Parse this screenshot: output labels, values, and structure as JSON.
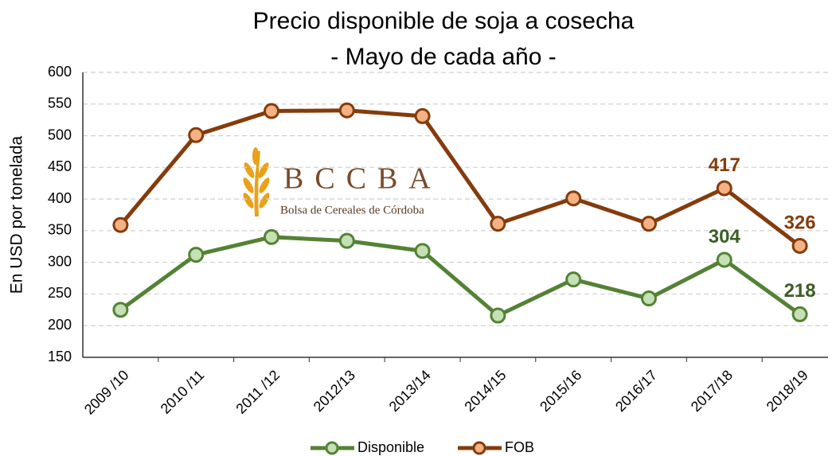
{
  "chart_data": {
    "type": "line",
    "title": "Precio disponible de soja a cosecha",
    "subtitle": "- Mayo de cada año -",
    "y_label": "En USD por tonelada",
    "categories": [
      "2009 /10",
      "2010 /11",
      "2011 /12",
      "2012/13",
      "2013/14",
      "2014/15",
      "2015/16",
      "2016/17",
      "2017/18",
      "2018/19"
    ],
    "series": [
      {
        "name": "Disponible",
        "color": "#548235",
        "marker_color": "#c5e0b4",
        "label_color": "#3b5e25",
        "values": [
          225,
          312,
          340,
          334,
          318,
          216,
          273,
          243,
          304,
          218
        ],
        "value_labels": [
          null,
          null,
          null,
          null,
          null,
          null,
          null,
          null,
          "304",
          "218"
        ]
      },
      {
        "name": "FOB",
        "color": "#843c0c",
        "marker_color": "#f4b183",
        "label_color": "#843c0c",
        "values": [
          359,
          501,
          539,
          540,
          531,
          361,
          401,
          361,
          417,
          326
        ],
        "value_labels": [
          null,
          null,
          null,
          null,
          null,
          null,
          null,
          null,
          "417",
          "326"
        ]
      }
    ],
    "ylim": [
      150,
      600
    ],
    "yticks": [
      150,
      200,
      250,
      300,
      350,
      400,
      450,
      500,
      550,
      600
    ],
    "grid": true,
    "legend": "bottom"
  },
  "logo": {
    "title": "BCCBA",
    "subtitle": "Bolsa de Cereales de Córdoba"
  }
}
